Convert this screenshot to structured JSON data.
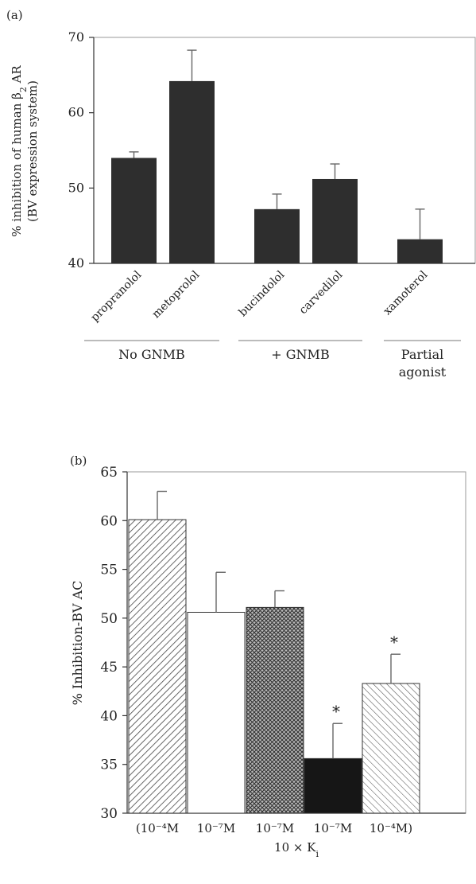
{
  "chart_data": [
    {
      "panel": "(a)",
      "type": "bar",
      "categories": [
        "propranolol",
        "metoprolol",
        "bucindolol",
        "carvedilol",
        "xamoterol"
      ],
      "values": [
        54,
        64.2,
        47.2,
        51.2,
        43.2
      ],
      "errors": [
        0.8,
        4.1,
        2.0,
        2.0,
        4.0
      ],
      "groups": [
        {
          "label": "No GNMB",
          "members": [
            0,
            1
          ]
        },
        {
          "label": "+ GNMB",
          "members": [
            2,
            3
          ]
        },
        {
          "label_lines": [
            "Partial",
            "agonist"
          ],
          "members": [
            4
          ]
        }
      ],
      "ylabel_line1": "% inhibition of human β",
      "ylabel_sub": "2",
      "ylabel_line1_tail": " AR",
      "ylabel_line2": "(BV expression system)",
      "ylim": [
        40,
        70
      ],
      "yticks": [
        "40",
        "50",
        "60",
        "70"
      ],
      "grid": false,
      "bar_color": "#2e2e2e"
    },
    {
      "panel": "(b)",
      "type": "bar",
      "categories": [
        "(10⁻⁴M",
        "10⁻⁷M",
        "10⁻⁷M",
        "10⁻⁷M",
        "10⁻⁴M)"
      ],
      "values": [
        60.1,
        50.6,
        51.1,
        35.6,
        43.3
      ],
      "errors": [
        2.9,
        4.1,
        1.7,
        3.6,
        3.0
      ],
      "significance": [
        "",
        "",
        "",
        "*",
        "*"
      ],
      "fills": [
        "diag-dense",
        "white",
        "crosshatch",
        "black",
        "diag-light"
      ],
      "xlabel": "10 × K",
      "xlabel_sub": "i",
      "ylabel": "% Inhibition-BV AC",
      "ylim": [
        30,
        65
      ],
      "yticks": [
        "30",
        "35",
        "40",
        "45",
        "50",
        "55",
        "60",
        "65"
      ],
      "grid": false
    }
  ]
}
